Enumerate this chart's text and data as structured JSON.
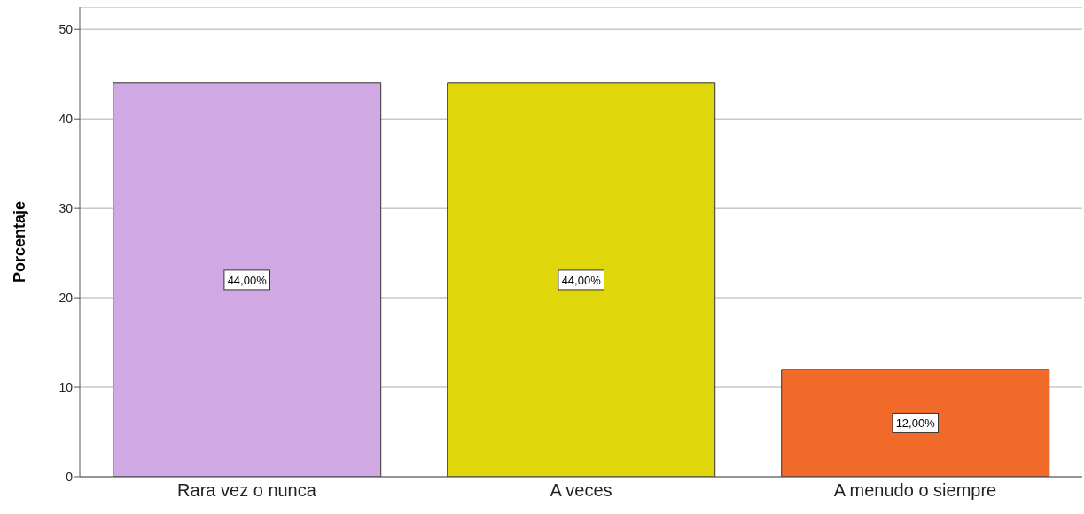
{
  "chart_data": {
    "type": "bar",
    "ylabel": "Porcentaje",
    "categories": [
      "Rara vez o nunca",
      "A veces",
      "A menudo o siempre"
    ],
    "values": [
      44,
      44,
      12
    ],
    "colors": [
      "#d0a8e4",
      "#e0d60c",
      "#f26a2a"
    ],
    "value_labels": [
      "44,00%",
      "44,00%",
      "12,00%"
    ],
    "ylim": [
      0,
      52.5
    ],
    "yticks": [
      0,
      10,
      20,
      30,
      40,
      50
    ],
    "grid": "y"
  }
}
